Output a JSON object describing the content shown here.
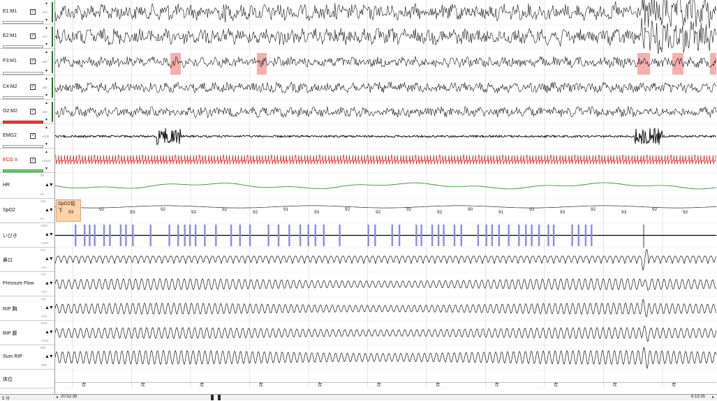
{
  "channels": [
    {
      "id": "e1m1",
      "label": "E1:M1",
      "checked": true,
      "scale": "±70",
      "kind": "eeg"
    },
    {
      "id": "e2m1",
      "label": "E2:M1",
      "checked": true,
      "scale": "±70",
      "kind": "eeg"
    },
    {
      "id": "f3m1",
      "label": "F3:M1",
      "checked": true,
      "scale": "±50",
      "kind": "eeg"
    },
    {
      "id": "c4m2",
      "label": "C4:M2",
      "checked": true,
      "scale": "±50",
      "kind": "eeg"
    },
    {
      "id": "o2m2",
      "label": "O2:M2",
      "checked": true,
      "scale": "±50",
      "kind": "eeg"
    },
    {
      "id": "emg2",
      "label": "EMG2",
      "checked": true,
      "scale": "±100",
      "kind": "emg"
    },
    {
      "id": "ecg",
      "label": "ECG II",
      "checked": true,
      "scale": "±2400",
      "kind": "ecg"
    },
    {
      "id": "hr",
      "label": "HR",
      "ticks": [
        "90",
        "",
        "50"
      ],
      "kind": "hr"
    },
    {
      "id": "spo2",
      "label": "SpO2",
      "ticks": [
        "100",
        "",
        "80"
      ],
      "kind": "spo2"
    },
    {
      "id": "snore",
      "label": "いびき",
      "ticks": [
        "1000",
        "",
        "-1000"
      ],
      "kind": "snore"
    },
    {
      "id": "nasal",
      "label": "鼻口",
      "ticks": [
        "444",
        "",
        "-444"
      ],
      "kind": "resp"
    },
    {
      "id": "pflow",
      "label": "Pressure Flow",
      "ticks": [
        "703",
        "",
        "-703"
      ],
      "kind": "resp"
    },
    {
      "id": "ripc",
      "label": "RIP 胸",
      "ticks": [
        "148",
        "",
        "-148"
      ],
      "kind": "resp"
    },
    {
      "id": "ripa",
      "label": "RIP 腹",
      "ticks": [
        "1000",
        "",
        "-1000"
      ],
      "kind": "resp"
    },
    {
      "id": "sumrip",
      "label": "Sum RIP",
      "ticks": [
        "883",
        "",
        "-883"
      ],
      "kind": "resp"
    },
    {
      "id": "pos",
      "label": "体位",
      "kind": "pos"
    }
  ],
  "spo2_event": "SpO2低下",
  "spo2_values": [
    "93",
    "92",
    "93",
    "92",
    "92",
    "92",
    "92",
    "91",
    "93",
    "92",
    "92",
    "92",
    "92",
    "90",
    "91",
    "93",
    "93",
    "92",
    "93",
    "92",
    "92"
  ],
  "position_labels": [
    "左",
    "左",
    "左",
    "左",
    "左",
    "左",
    "左",
    "左",
    "左",
    "左",
    "左"
  ],
  "footer": {
    "left_label": "5 分",
    "start_time": "20:52:38",
    "end_time": "6:15:35"
  },
  "colors": {
    "ecg": "#dd1111",
    "hr": "#2a8a2a",
    "arousal": "#f29b9b",
    "snore": "#8a8ae8",
    "spo2_event": "#ffd2a8"
  }
}
